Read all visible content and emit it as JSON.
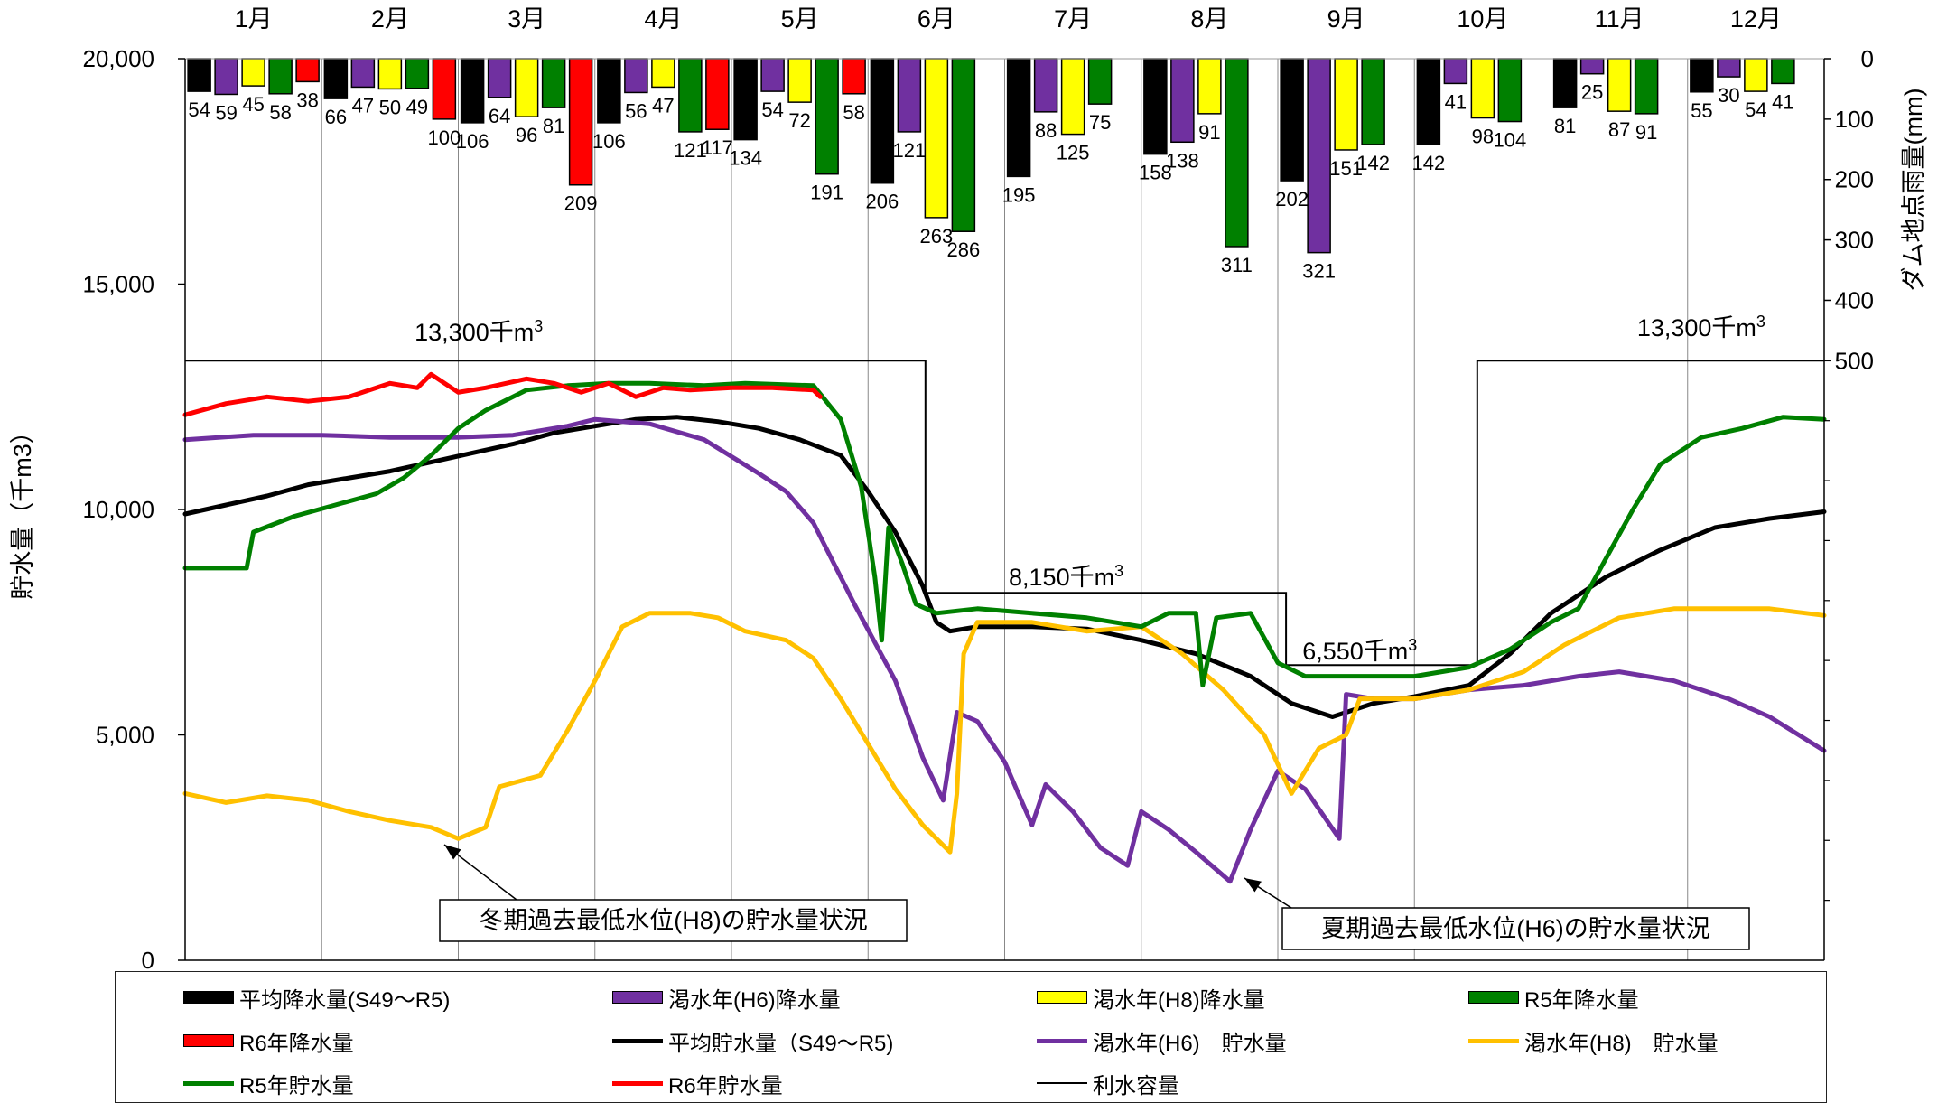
{
  "chart_data": {
    "type": "bar+line",
    "months": [
      "1月",
      "2月",
      "3月",
      "4月",
      "5月",
      "6月",
      "7月",
      "8月",
      "9月",
      "10月",
      "11月",
      "12月"
    ],
    "left_axis": {
      "label": "貯水量（千m3）",
      "range": [
        0,
        20000
      ],
      "ticks": [
        "0",
        "5,000",
        "10,000",
        "15,000",
        "20,000"
      ]
    },
    "right_axis": {
      "label": "ダム地点雨量(mm)",
      "range": [
        0,
        500
      ],
      "inverted": true,
      "ticks": [
        "0",
        "100",
        "200",
        "300",
        "400",
        "500"
      ]
    },
    "rainfall_series": [
      {
        "name": "平均降水量(S49～R5)",
        "color": "#000000",
        "values": [
          54,
          66,
          106,
          106,
          134,
          206,
          195,
          158,
          202,
          142,
          81,
          55
        ]
      },
      {
        "name": "渇水年(H6)降水量",
        "color": "#7030A0",
        "values": [
          59,
          47,
          64,
          56,
          54,
          121,
          88,
          138,
          321,
          41,
          25,
          30
        ]
      },
      {
        "name": "渇水年(H8)降水量",
        "color": "#FFFF00",
        "values": [
          45,
          50,
          96,
          47,
          72,
          263,
          125,
          91,
          151,
          98,
          87,
          54
        ]
      },
      {
        "name": "R5年降水量",
        "color": "#008000",
        "values": [
          58,
          49,
          81,
          121,
          191,
          286,
          75,
          311,
          142,
          104,
          91,
          41
        ]
      },
      {
        "name": "R6年降水量",
        "color": "#FF0000",
        "values": [
          38,
          100,
          209,
          117,
          58,
          null,
          null,
          null,
          null,
          null,
          null,
          null
        ]
      }
    ],
    "rainfall_labels": [
      [
        "54",
        "59",
        "45",
        "58",
        "38"
      ],
      [
        "66",
        "47",
        "50",
        "49",
        "100"
      ],
      [
        "106",
        "64",
        "96",
        "81",
        "209"
      ],
      [
        "106",
        "56",
        "47",
        "121",
        "117"
      ],
      [
        "134",
        "54",
        "72",
        "191",
        "58"
      ],
      [
        "206",
        "121",
        "263",
        "286",
        ""
      ],
      [
        "195",
        "88",
        "125",
        "75",
        ""
      ],
      [
        "158",
        "138",
        "91",
        "311",
        ""
      ],
      [
        "202",
        "321",
        "151",
        "142",
        ""
      ],
      [
        "142",
        "41",
        "98",
        "104",
        ""
      ],
      [
        "81",
        "25",
        "87",
        "91",
        ""
      ],
      [
        "55",
        "30",
        "54",
        "41",
        ""
      ]
    ],
    "storage_series": [
      {
        "name": "平均貯水量（S49～R5)",
        "color": "#000000",
        "points": [
          [
            0,
            9900
          ],
          [
            0.3,
            10100
          ],
          [
            0.6,
            10300
          ],
          [
            0.9,
            10550
          ],
          [
            1.2,
            10700
          ],
          [
            1.5,
            10850
          ],
          [
            1.8,
            11050
          ],
          [
            2.1,
            11250
          ],
          [
            2.4,
            11450
          ],
          [
            2.7,
            11700
          ],
          [
            3.0,
            11850
          ],
          [
            3.3,
            12000
          ],
          [
            3.6,
            12050
          ],
          [
            3.9,
            11950
          ],
          [
            4.2,
            11800
          ],
          [
            4.5,
            11550
          ],
          [
            4.8,
            11200
          ],
          [
            5.0,
            10400
          ],
          [
            5.2,
            9500
          ],
          [
            5.4,
            8300
          ],
          [
            5.5,
            7500
          ],
          [
            5.6,
            7300
          ],
          [
            5.8,
            7400
          ],
          [
            6.2,
            7400
          ],
          [
            6.6,
            7350
          ],
          [
            7.0,
            7100
          ],
          [
            7.4,
            6800
          ],
          [
            7.8,
            6300
          ],
          [
            8.1,
            5700
          ],
          [
            8.4,
            5400
          ],
          [
            8.7,
            5700
          ],
          [
            9.0,
            5850
          ],
          [
            9.4,
            6100
          ],
          [
            9.7,
            6800
          ],
          [
            10.0,
            7700
          ],
          [
            10.4,
            8500
          ],
          [
            10.8,
            9100
          ],
          [
            11.2,
            9600
          ],
          [
            11.6,
            9800
          ],
          [
            12.0,
            9950
          ]
        ]
      },
      {
        "name": "渇水年(H6)　貯水量",
        "color": "#7030A0",
        "points": [
          [
            0,
            11550
          ],
          [
            0.5,
            11650
          ],
          [
            1.0,
            11650
          ],
          [
            1.5,
            11600
          ],
          [
            2.0,
            11600
          ],
          [
            2.4,
            11650
          ],
          [
            2.8,
            11850
          ],
          [
            3.0,
            12000
          ],
          [
            3.4,
            11900
          ],
          [
            3.8,
            11550
          ],
          [
            4.2,
            10800
          ],
          [
            4.4,
            10400
          ],
          [
            4.6,
            9700
          ],
          [
            4.9,
            7900
          ],
          [
            5.2,
            6200
          ],
          [
            5.4,
            4500
          ],
          [
            5.55,
            3550
          ],
          [
            5.65,
            5500
          ],
          [
            5.8,
            5300
          ],
          [
            6.0,
            4400
          ],
          [
            6.2,
            3000
          ],
          [
            6.3,
            3900
          ],
          [
            6.5,
            3300
          ],
          [
            6.7,
            2500
          ],
          [
            6.9,
            2100
          ],
          [
            7.0,
            3300
          ],
          [
            7.2,
            2900
          ],
          [
            7.4,
            2400
          ],
          [
            7.65,
            1750
          ],
          [
            7.8,
            2900
          ],
          [
            8.0,
            4200
          ],
          [
            8.2,
            3800
          ],
          [
            8.45,
            2700
          ],
          [
            8.5,
            5900
          ],
          [
            8.7,
            5800
          ],
          [
            9.0,
            5800
          ],
          [
            9.4,
            6000
          ],
          [
            9.8,
            6100
          ],
          [
            10.2,
            6300
          ],
          [
            10.5,
            6400
          ],
          [
            10.9,
            6200
          ],
          [
            11.3,
            5800
          ],
          [
            11.6,
            5400
          ],
          [
            12.0,
            4650
          ]
        ]
      },
      {
        "name": "渇水年(H8)　貯水量",
        "color": "#FFC000",
        "points": [
          [
            0,
            3700
          ],
          [
            0.3,
            3500
          ],
          [
            0.6,
            3650
          ],
          [
            0.9,
            3550
          ],
          [
            1.2,
            3300
          ],
          [
            1.5,
            3100
          ],
          [
            1.8,
            2950
          ],
          [
            2.0,
            2700
          ],
          [
            2.2,
            2950
          ],
          [
            2.3,
            3850
          ],
          [
            2.6,
            4100
          ],
          [
            2.8,
            5100
          ],
          [
            3.0,
            6200
          ],
          [
            3.2,
            7400
          ],
          [
            3.4,
            7700
          ],
          [
            3.7,
            7700
          ],
          [
            3.9,
            7600
          ],
          [
            4.1,
            7300
          ],
          [
            4.4,
            7100
          ],
          [
            4.6,
            6700
          ],
          [
            4.8,
            5800
          ],
          [
            5.0,
            4800
          ],
          [
            5.2,
            3800
          ],
          [
            5.4,
            3000
          ],
          [
            5.6,
            2400
          ],
          [
            5.65,
            3700
          ],
          [
            5.7,
            6800
          ],
          [
            5.8,
            7500
          ],
          [
            6.2,
            7500
          ],
          [
            6.6,
            7300
          ],
          [
            7.0,
            7400
          ],
          [
            7.3,
            6800
          ],
          [
            7.6,
            6000
          ],
          [
            7.9,
            5000
          ],
          [
            8.1,
            3700
          ],
          [
            8.3,
            4700
          ],
          [
            8.5,
            5000
          ],
          [
            8.6,
            5800
          ],
          [
            9.0,
            5800
          ],
          [
            9.4,
            6000
          ],
          [
            9.8,
            6400
          ],
          [
            10.1,
            7000
          ],
          [
            10.5,
            7600
          ],
          [
            10.9,
            7800
          ],
          [
            11.3,
            7800
          ],
          [
            11.6,
            7800
          ],
          [
            12.0,
            7650
          ]
        ]
      },
      {
        "name": "R5年貯水量",
        "color": "#008000",
        "points": [
          [
            0,
            8700
          ],
          [
            0.45,
            8700
          ],
          [
            0.5,
            9500
          ],
          [
            0.8,
            9850
          ],
          [
            1.1,
            10100
          ],
          [
            1.4,
            10350
          ],
          [
            1.6,
            10700
          ],
          [
            1.8,
            11200
          ],
          [
            2.0,
            11800
          ],
          [
            2.2,
            12200
          ],
          [
            2.5,
            12650
          ],
          [
            2.8,
            12750
          ],
          [
            3.1,
            12800
          ],
          [
            3.4,
            12800
          ],
          [
            3.8,
            12750
          ],
          [
            4.1,
            12800
          ],
          [
            4.6,
            12750
          ],
          [
            4.8,
            12000
          ],
          [
            4.95,
            10500
          ],
          [
            5.05,
            8500
          ],
          [
            5.1,
            7100
          ],
          [
            5.15,
            9600
          ],
          [
            5.25,
            8800
          ],
          [
            5.35,
            7900
          ],
          [
            5.5,
            7700
          ],
          [
            5.8,
            7800
          ],
          [
            6.2,
            7700
          ],
          [
            6.6,
            7600
          ],
          [
            7.0,
            7400
          ],
          [
            7.2,
            7700
          ],
          [
            7.4,
            7700
          ],
          [
            7.45,
            6100
          ],
          [
            7.55,
            7600
          ],
          [
            7.8,
            7700
          ],
          [
            8.0,
            6600
          ],
          [
            8.2,
            6300
          ],
          [
            8.5,
            6300
          ],
          [
            9.0,
            6300
          ],
          [
            9.4,
            6500
          ],
          [
            9.7,
            6900
          ],
          [
            10.0,
            7500
          ],
          [
            10.2,
            7800
          ],
          [
            10.4,
            8900
          ],
          [
            10.6,
            10000
          ],
          [
            10.8,
            11000
          ],
          [
            11.1,
            11600
          ],
          [
            11.4,
            11800
          ],
          [
            11.7,
            12050
          ],
          [
            12.0,
            12000
          ]
        ]
      },
      {
        "name": "R6年貯水量",
        "color": "#FF0000",
        "points": [
          [
            0,
            12100
          ],
          [
            0.3,
            12350
          ],
          [
            0.6,
            12500
          ],
          [
            0.9,
            12400
          ],
          [
            1.2,
            12500
          ],
          [
            1.5,
            12800
          ],
          [
            1.7,
            12700
          ],
          [
            1.8,
            13000
          ],
          [
            2.0,
            12600
          ],
          [
            2.2,
            12700
          ],
          [
            2.5,
            12900
          ],
          [
            2.7,
            12800
          ],
          [
            2.9,
            12600
          ],
          [
            3.1,
            12800
          ],
          [
            3.3,
            12500
          ],
          [
            3.5,
            12700
          ],
          [
            3.7,
            12650
          ],
          [
            4.0,
            12700
          ],
          [
            4.3,
            12700
          ],
          [
            4.6,
            12650
          ],
          [
            4.65,
            12500
          ]
        ]
      },
      {
        "name": "利水容量",
        "color": "#000000",
        "dash": "solid",
        "width": 1.3,
        "points": [
          [
            0,
            13300
          ],
          [
            5.42,
            13300
          ],
          [
            5.42,
            8150
          ],
          [
            8.06,
            8150
          ],
          [
            8.06,
            6550
          ],
          [
            9.46,
            6550
          ],
          [
            9.46,
            13300
          ],
          [
            12.0,
            13300
          ]
        ]
      }
    ],
    "annotations": [
      {
        "text": "13,300千m",
        "sup": "3"
      },
      {
        "text": "8,150千m",
        "sup": "3"
      },
      {
        "text": "6,550千m",
        "sup": "3"
      },
      {
        "text": "13,300千m",
        "sup": "3"
      },
      {
        "text": "冬期過去最低水位(H8)の貯水量状況"
      },
      {
        "text": "夏期過去最低水位(H6)の貯水量状況"
      }
    ],
    "legend": {
      "items": [
        {
          "label": "平均降水量(S49～R5)",
          "kind": "bar",
          "color": "#000000"
        },
        {
          "label": "渇水年(H6)降水量",
          "kind": "bar",
          "color": "#7030A0"
        },
        {
          "label": "渇水年(H8)降水量",
          "kind": "bar",
          "color": "#FFFF00"
        },
        {
          "label": "R5年降水量",
          "kind": "bar",
          "color": "#008000"
        },
        {
          "label": "R6年降水量",
          "kind": "bar",
          "color": "#FF0000"
        },
        {
          "label": "平均貯水量（S49～R5)",
          "kind": "line",
          "color": "#000000"
        },
        {
          "label": "渇水年(H6)　貯水量",
          "kind": "line",
          "color": "#7030A0"
        },
        {
          "label": "渇水年(H8)　貯水量",
          "kind": "line",
          "color": "#FFC000"
        },
        {
          "label": "R5年貯水量",
          "kind": "line",
          "color": "#008000"
        },
        {
          "label": "R6年貯水量",
          "kind": "line",
          "color": "#FF0000"
        },
        {
          "label": "利水容量",
          "kind": "thin-line",
          "color": "#000000"
        }
      ]
    }
  }
}
